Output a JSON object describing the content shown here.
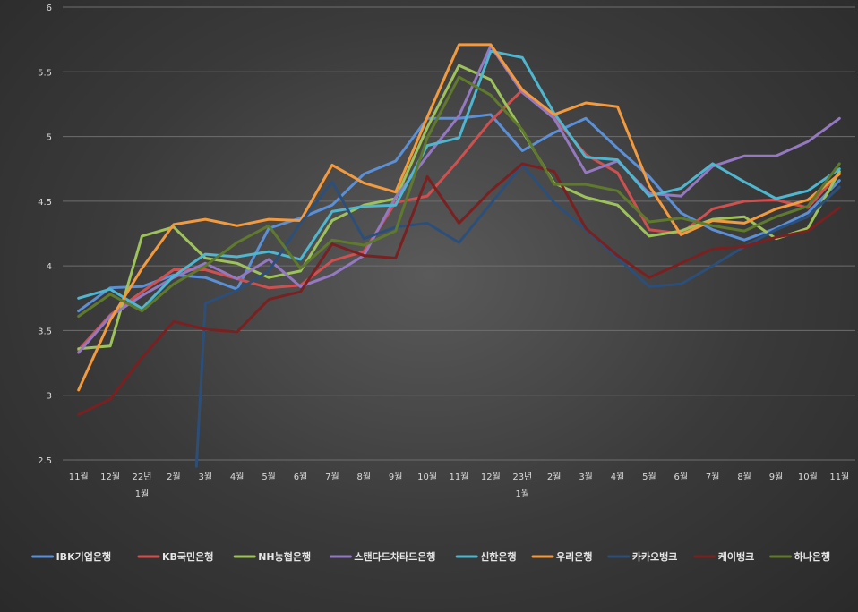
{
  "chart_data": {
    "type": "line",
    "title": "",
    "xlabel": "",
    "ylabel": "",
    "ylim": [
      2.5,
      6
    ],
    "yticks": [
      "2.5",
      "3",
      "3.5",
      "4",
      "4.5",
      "5",
      "5.5",
      "6"
    ],
    "grid": "horizontal",
    "legend_position": "bottom",
    "categories": [
      [
        "11월"
      ],
      [
        "12월"
      ],
      [
        "22년",
        "1월"
      ],
      [
        "2월"
      ],
      [
        "3월"
      ],
      [
        "4월"
      ],
      [
        "5월"
      ],
      [
        "6월"
      ],
      [
        "7월"
      ],
      [
        "8월"
      ],
      [
        "9월"
      ],
      [
        "10월"
      ],
      [
        "11월"
      ],
      [
        "12월"
      ],
      [
        "23년",
        "1월"
      ],
      [
        "2월"
      ],
      [
        "3월"
      ],
      [
        "4월"
      ],
      [
        "5월"
      ],
      [
        "6월"
      ],
      [
        "7월"
      ],
      [
        "8월"
      ],
      [
        "9월"
      ],
      [
        "10월"
      ],
      [
        "11월"
      ]
    ],
    "series": [
      {
        "name": "IBK기업은행",
        "color": "#5b8fd6",
        "values": [
          3.65,
          3.83,
          3.84,
          3.93,
          3.91,
          3.82,
          4.29,
          4.37,
          4.47,
          4.71,
          4.81,
          5.14,
          5.14,
          5.17,
          4.89,
          5.03,
          5.14,
          4.91,
          4.69,
          4.41,
          4.28,
          4.2,
          4.29,
          4.41,
          4.66
        ]
      },
      {
        "name": "KB국민은행",
        "color": "#d05050",
        "values": [
          3.35,
          3.62,
          3.8,
          3.97,
          3.97,
          3.9,
          3.83,
          3.85,
          4.04,
          4.11,
          4.49,
          4.54,
          4.82,
          5.12,
          5.36,
          5.15,
          4.86,
          4.72,
          4.28,
          4.25,
          4.44,
          4.5,
          4.51,
          4.45,
          4.72
        ]
      },
      {
        "name": "NH농협은행",
        "color": "#9dc25a",
        "values": [
          3.36,
          3.38,
          4.23,
          4.3,
          4.06,
          4.02,
          3.91,
          3.96,
          4.35,
          4.47,
          4.52,
          5.07,
          5.55,
          5.44,
          5.04,
          4.64,
          4.53,
          4.47,
          4.23,
          4.27,
          4.36,
          4.38,
          4.21,
          4.29,
          4.73
        ]
      },
      {
        "name": "스탠다드차타드은행",
        "color": "#9478c2",
        "values": [
          3.33,
          3.61,
          3.77,
          3.91,
          4.02,
          3.9,
          4.05,
          3.84,
          3.93,
          4.08,
          4.53,
          4.85,
          5.16,
          5.7,
          5.34,
          5.14,
          4.72,
          4.81,
          4.56,
          4.54,
          4.77,
          4.85,
          4.85,
          4.96,
          5.14
        ]
      },
      {
        "name": "신한은행",
        "color": "#4fb6d0",
        "values": [
          3.75,
          3.82,
          3.67,
          3.92,
          4.09,
          4.07,
          4.11,
          4.05,
          4.42,
          4.46,
          4.47,
          4.93,
          4.99,
          5.66,
          5.61,
          5.18,
          4.84,
          4.82,
          4.54,
          4.6,
          4.79,
          4.65,
          4.52,
          4.58,
          4.75
        ]
      },
      {
        "name": "우리은행",
        "color": "#f39a3e",
        "values": [
          3.04,
          3.58,
          3.98,
          4.32,
          4.36,
          4.31,
          4.36,
          4.35,
          4.78,
          4.64,
          4.57,
          5.15,
          5.71,
          5.71,
          5.36,
          5.17,
          5.26,
          5.23,
          4.62,
          4.24,
          4.35,
          4.33,
          4.44,
          4.51,
          4.71
        ]
      },
      {
        "name": "카카오뱅크",
        "color": "#2c4f7a",
        "values": [
          null,
          null,
          null,
          null,
          3.71,
          3.81,
          3.96,
          4.33,
          4.65,
          4.21,
          4.3,
          4.33,
          4.18,
          4.48,
          4.78,
          4.49,
          4.28,
          4.06,
          3.84,
          3.86,
          4.0,
          4.15,
          4.28,
          4.38,
          4.61
        ]
      },
      {
        "name": "케이뱅크",
        "color": "#7a2020",
        "values": [
          2.85,
          2.97,
          3.29,
          3.57,
          3.51,
          3.49,
          3.74,
          3.8,
          4.17,
          4.08,
          4.06,
          4.69,
          4.33,
          4.58,
          4.79,
          4.73,
          4.29,
          4.08,
          3.91,
          4.02,
          4.13,
          4.15,
          4.22,
          4.27,
          4.45
        ]
      },
      {
        "name": "하나은행",
        "color": "#5f7a2c",
        "values": [
          3.61,
          3.78,
          3.65,
          3.86,
          4.0,
          4.18,
          4.31,
          3.98,
          4.2,
          4.16,
          4.27,
          4.99,
          5.46,
          5.32,
          5.05,
          4.63,
          4.63,
          4.58,
          4.34,
          4.37,
          4.31,
          4.27,
          4.38,
          4.46,
          4.79
        ]
      }
    ],
    "kakao_entry_line": {
      "from": 2.45,
      "to": 3.71
    }
  }
}
